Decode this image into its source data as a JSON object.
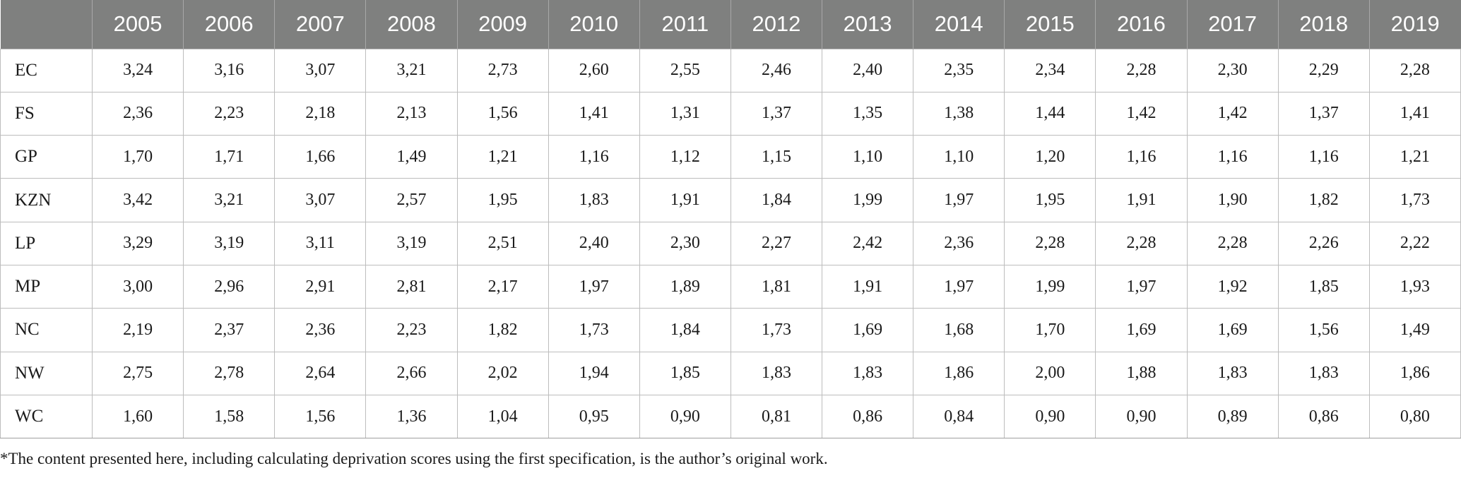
{
  "table": {
    "columns": [
      "",
      "2005",
      "2006",
      "2007",
      "2008",
      "2009",
      "2010",
      "2011",
      "2012",
      "2013",
      "2014",
      "2015",
      "2016",
      "2017",
      "2018",
      "2019"
    ],
    "rows": [
      {
        "label": "EC",
        "values": [
          "3,24",
          "3,16",
          "3,07",
          "3,21",
          "2,73",
          "2,60",
          "2,55",
          "2,46",
          "2,40",
          "2,35",
          "2,34",
          "2,28",
          "2,30",
          "2,29",
          "2,28"
        ]
      },
      {
        "label": "FS",
        "values": [
          "2,36",
          "2,23",
          "2,18",
          "2,13",
          "1,56",
          "1,41",
          "1,31",
          "1,37",
          "1,35",
          "1,38",
          "1,44",
          "1,42",
          "1,42",
          "1,37",
          "1,41"
        ]
      },
      {
        "label": "GP",
        "values": [
          "1,70",
          "1,71",
          "1,66",
          "1,49",
          "1,21",
          "1,16",
          "1,12",
          "1,15",
          "1,10",
          "1,10",
          "1,20",
          "1,16",
          "1,16",
          "1,16",
          "1,21"
        ]
      },
      {
        "label": "KZN",
        "values": [
          "3,42",
          "3,21",
          "3,07",
          "2,57",
          "1,95",
          "1,83",
          "1,91",
          "1,84",
          "1,99",
          "1,97",
          "1,95",
          "1,91",
          "1,90",
          "1,82",
          "1,73"
        ]
      },
      {
        "label": "LP",
        "values": [
          "3,29",
          "3,19",
          "3,11",
          "3,19",
          "2,51",
          "2,40",
          "2,30",
          "2,27",
          "2,42",
          "2,36",
          "2,28",
          "2,28",
          "2,28",
          "2,26",
          "2,22"
        ]
      },
      {
        "label": "MP",
        "values": [
          "3,00",
          "2,96",
          "2,91",
          "2,81",
          "2,17",
          "1,97",
          "1,89",
          "1,81",
          "1,91",
          "1,97",
          "1,99",
          "1,97",
          "1,92",
          "1,85",
          "1,93"
        ]
      },
      {
        "label": "NC",
        "values": [
          "2,19",
          "2,37",
          "2,36",
          "2,23",
          "1,82",
          "1,73",
          "1,84",
          "1,73",
          "1,69",
          "1,68",
          "1,70",
          "1,69",
          "1,69",
          "1,56",
          "1,49"
        ]
      },
      {
        "label": "NW",
        "values": [
          "2,75",
          "2,78",
          "2,64",
          "2,66",
          "2,02",
          "1,94",
          "1,85",
          "1,83",
          "1,83",
          "1,86",
          "2,00",
          "1,88",
          "1,83",
          "1,83",
          "1,86"
        ]
      },
      {
        "label": "WC",
        "values": [
          "1,60",
          "1,58",
          "1,56",
          "1,36",
          "1,04",
          "0,95",
          "0,90",
          "0,81",
          "0,86",
          "0,84",
          "0,90",
          "0,90",
          "0,89",
          "0,86",
          "0,80"
        ]
      }
    ]
  },
  "footnote": "*The content presented here, including calculating deprivation scores using the first specification, is the author’s original work.",
  "colors": {
    "header_bg": "#7f807f",
    "header_text": "#ffffff",
    "grid": "#bdbdbd"
  }
}
